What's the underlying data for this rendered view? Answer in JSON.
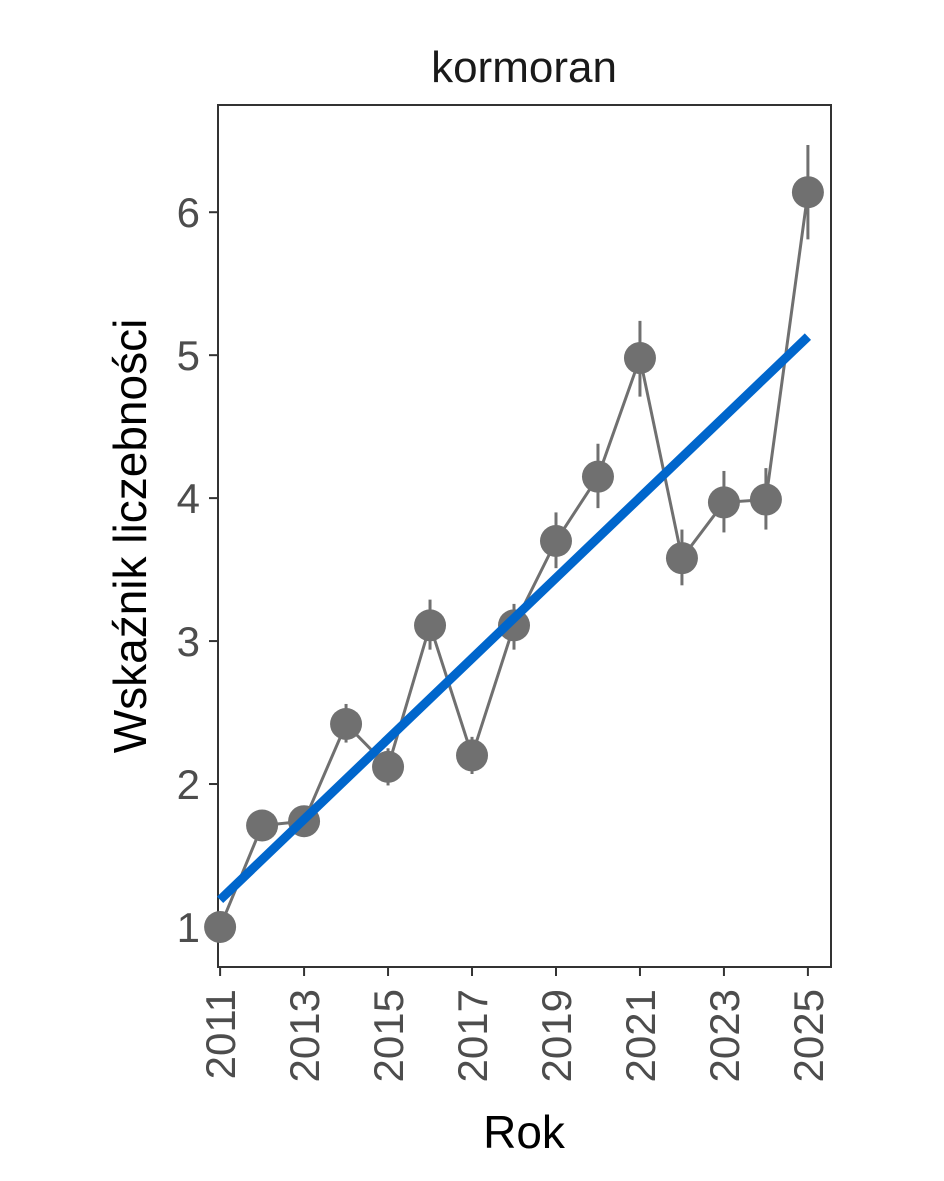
{
  "chart_data": {
    "type": "line",
    "title": "kormoran",
    "xlabel": "Rok",
    "ylabel": "Wskaźnik liczebności",
    "xlim": [
      2010.95,
      2025.55
    ],
    "ylim": [
      0.72,
      6.75
    ],
    "xticks": [
      2011,
      2013,
      2015,
      2017,
      2019,
      2021,
      2023,
      2025
    ],
    "yticks": [
      1,
      2,
      3,
      4,
      5,
      6
    ],
    "grid": false,
    "legend": "none",
    "colors": {
      "points": "#707070",
      "trend": "#0066cc",
      "frame": "#333333"
    },
    "series": [
      {
        "x": [
          2011,
          2012,
          2013,
          2014,
          2015,
          2016,
          2017,
          2018,
          2019,
          2020,
          2021,
          2022,
          2023,
          2024,
          2025
        ],
        "values": [
          1.0,
          1.71,
          1.74,
          2.42,
          2.12,
          3.11,
          2.2,
          3.11,
          3.7,
          4.15,
          4.98,
          3.58,
          3.97,
          3.99,
          6.14
        ],
        "lower": [
          1.0,
          1.66,
          1.68,
          2.29,
          1.99,
          2.94,
          2.07,
          2.94,
          3.51,
          3.93,
          4.71,
          3.39,
          3.76,
          3.78,
          5.81
        ],
        "upper": [
          1.0,
          1.78,
          1.79,
          2.56,
          2.25,
          3.29,
          2.33,
          3.26,
          3.9,
          4.38,
          5.24,
          3.78,
          4.19,
          4.21,
          6.47
        ]
      }
    ],
    "trend": {
      "x": [
        2011,
        2025
      ],
      "values": [
        1.19,
        5.13
      ]
    }
  }
}
